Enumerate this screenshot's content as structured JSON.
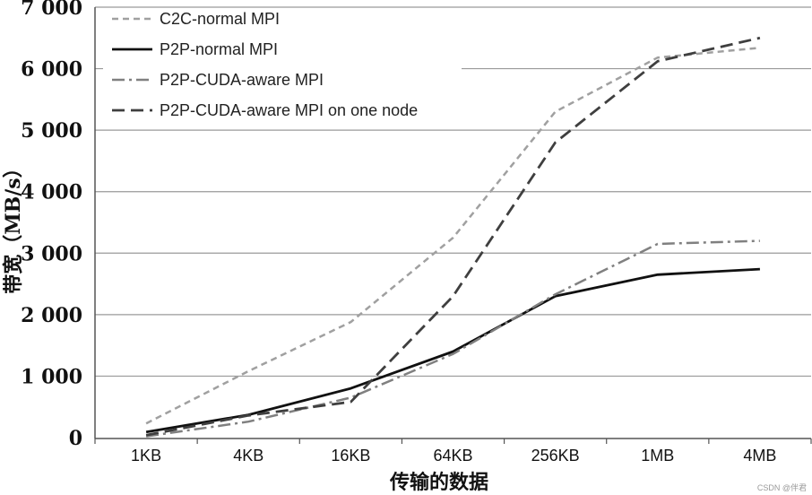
{
  "chart_data": {
    "type": "line",
    "xlabel": "传输的数据",
    "ylabel": "带宽（MB/s）",
    "categories": [
      "1KB",
      "4KB",
      "16KB",
      "64KB",
      "256KB",
      "1MB",
      "4MB"
    ],
    "ylim": [
      0,
      7000
    ],
    "y_ticks": [
      0,
      1000,
      2000,
      3000,
      4000,
      5000,
      6000,
      7000
    ],
    "y_tick_labels": [
      "0",
      "1 000",
      "2 000",
      "3 000",
      "4 000",
      "5 000",
      "6 000",
      "7 000"
    ],
    "grid": true,
    "legend": "top-left",
    "series": [
      {
        "name": "C2C-normal MPI",
        "color": "#a0a0a0",
        "line_style": "dashed",
        "values": [
          230,
          1080,
          1880,
          3250,
          5300,
          6180,
          6340
        ]
      },
      {
        "name": "P2P-normal MPI",
        "color": "#111111",
        "line_style": "solid",
        "values": [
          90,
          370,
          800,
          1400,
          2300,
          2650,
          2740
        ]
      },
      {
        "name": "P2P-CUDA-aware MPI",
        "color": "#808080",
        "line_style": "dash-dot",
        "values": [
          20,
          260,
          650,
          1360,
          2330,
          3150,
          3200
        ]
      },
      {
        "name": "P2P-CUDA-aware MPI on one node",
        "color": "#3f3f3f",
        "line_style": "long-dash",
        "values": [
          40,
          360,
          580,
          2300,
          4800,
          6120,
          6500
        ]
      }
    ]
  },
  "watermark": "CSDN @伴君"
}
